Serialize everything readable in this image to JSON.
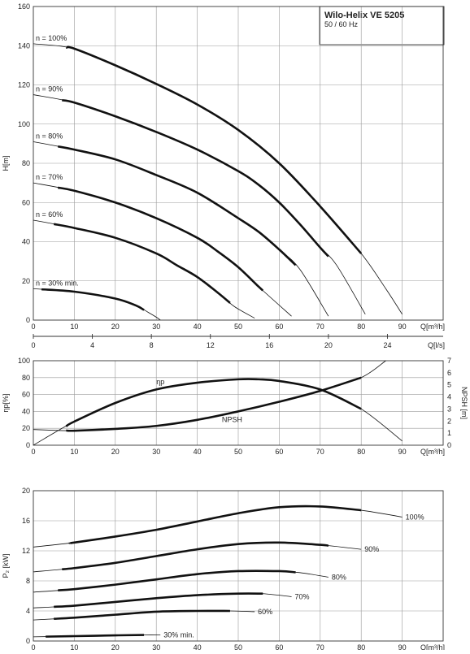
{
  "title": "Wilo-Helix VE 5205",
  "subtitle": "50 / 60 Hz",
  "chart_data": [
    {
      "type": "line",
      "xlabel": "Q[m³/h]",
      "ylabel": "H[m]",
      "xlim": [
        0,
        100
      ],
      "ylim": [
        0,
        160
      ],
      "xticks": [
        0,
        10,
        20,
        30,
        40,
        50,
        60,
        70,
        80,
        90
      ],
      "yticks": [
        0,
        20,
        40,
        60,
        80,
        100,
        120,
        140,
        160
      ],
      "secondary_xlabel": "Q[l/s]",
      "secondary_xticks": [
        0,
        4,
        8,
        12,
        16,
        20,
        24
      ],
      "grid": true,
      "series": [
        {
          "name": "n = 100%",
          "x": [
            0,
            10,
            20,
            30,
            40,
            50,
            60,
            70,
            80,
            86,
            90
          ],
          "y": [
            141,
            138.5,
            130,
            120.5,
            110,
            97,
            80,
            58,
            34,
            16,
            3
          ],
          "thick_range": [
            8,
            80
          ]
        },
        {
          "name": "n = 90%",
          "x": [
            0,
            10,
            20,
            30,
            40,
            50,
            55,
            60,
            65,
            70,
            74,
            81
          ],
          "y": [
            115,
            111,
            104,
            96,
            87,
            76,
            69,
            60,
            49,
            37,
            28,
            3
          ],
          "thick_range": [
            7,
            72
          ]
        },
        {
          "name": "n = 80%",
          "x": [
            0,
            10,
            20,
            30,
            40,
            50,
            55,
            60,
            65,
            72
          ],
          "y": [
            91,
            87,
            82,
            74,
            65,
            52,
            45,
            36,
            26,
            2
          ],
          "thick_range": [
            6,
            64
          ]
        },
        {
          "name": "n = 70%",
          "x": [
            0,
            10,
            20,
            30,
            40,
            45,
            50,
            55,
            63
          ],
          "y": [
            70,
            66,
            60,
            52,
            42,
            35,
            27,
            17,
            2
          ],
          "thick_range": [
            6,
            56
          ]
        },
        {
          "name": "n = 60%",
          "x": [
            0,
            10,
            20,
            30,
            35,
            40,
            45,
            49,
            54
          ],
          "y": [
            51,
            47,
            42,
            34,
            28,
            22,
            14,
            7,
            1
          ],
          "thick_range": [
            5,
            48
          ]
        },
        {
          "name": "n = 30% min.",
          "x": [
            0,
            10,
            20,
            25,
            28,
            30,
            31
          ],
          "y": [
            16,
            14.5,
            11,
            7.5,
            4,
            1.5,
            0
          ],
          "thick_range": [
            2,
            27
          ]
        }
      ]
    },
    {
      "type": "line",
      "xlabel": "Q[m³/h]",
      "ylabel": "ηp[%]",
      "secondary_ylabel": "NPSH [m]",
      "xlim": [
        0,
        100
      ],
      "ylim": [
        0,
        100
      ],
      "secondary_ylim": [
        0,
        7
      ],
      "xticks": [
        0,
        10,
        20,
        30,
        40,
        50,
        60,
        70,
        80,
        90
      ],
      "yticks": [
        0,
        20,
        40,
        60,
        80,
        100
      ],
      "secondary_yticks": [
        0,
        1,
        2,
        3,
        4,
        5,
        6,
        7
      ],
      "grid": true,
      "series": [
        {
          "name": "ηp",
          "axis": "left",
          "x": [
            0,
            10,
            20,
            30,
            40,
            50,
            55,
            60,
            70,
            80,
            90
          ],
          "y": [
            0,
            28,
            50,
            66,
            74,
            78,
            78,
            76,
            66,
            43,
            5
          ],
          "thick_range": [
            8,
            80
          ]
        },
        {
          "name": "NPSH",
          "axis": "right",
          "x": [
            0,
            10,
            20,
            30,
            40,
            50,
            60,
            70,
            80,
            86
          ],
          "y": [
            1.3,
            1.2,
            1.35,
            1.6,
            2.1,
            2.8,
            3.6,
            4.5,
            5.6,
            7
          ],
          "thick_range": [
            8,
            80
          ]
        }
      ]
    },
    {
      "type": "line",
      "xlabel": "Q[m³/h]",
      "ylabel": "P₂ [kW]",
      "xlim": [
        0,
        100
      ],
      "ylim": [
        0,
        20
      ],
      "xticks": [
        0,
        10,
        20,
        30,
        40,
        50,
        60,
        70,
        80,
        90
      ],
      "yticks": [
        0,
        4,
        8,
        12,
        16,
        20
      ],
      "grid": true,
      "series": [
        {
          "name": "100%",
          "x": [
            0,
            10,
            20,
            30,
            40,
            50,
            60,
            70,
            80,
            90
          ],
          "y": [
            12.5,
            13.1,
            13.9,
            14.8,
            15.9,
            17.0,
            17.8,
            17.9,
            17.4,
            16.5
          ],
          "thick_range": [
            9,
            80
          ]
        },
        {
          "name": "90%",
          "x": [
            0,
            10,
            20,
            30,
            40,
            50,
            60,
            70,
            80
          ],
          "y": [
            9.2,
            9.7,
            10.4,
            11.3,
            12.2,
            12.9,
            13.1,
            12.8,
            12.2
          ],
          "thick_range": [
            7,
            72
          ]
        },
        {
          "name": "80%",
          "x": [
            0,
            10,
            20,
            30,
            40,
            50,
            60,
            65,
            72
          ],
          "y": [
            6.5,
            6.9,
            7.5,
            8.2,
            8.9,
            9.3,
            9.3,
            9.1,
            8.5
          ],
          "thick_range": [
            6,
            64
          ]
        },
        {
          "name": "70%",
          "x": [
            0,
            10,
            20,
            30,
            40,
            50,
            56,
            63
          ],
          "y": [
            4.4,
            4.7,
            5.2,
            5.7,
            6.1,
            6.3,
            6.3,
            5.9
          ],
          "thick_range": [
            5,
            56
          ]
        },
        {
          "name": "60%",
          "x": [
            0,
            10,
            20,
            30,
            40,
            48,
            54
          ],
          "y": [
            2.8,
            3.1,
            3.5,
            3.9,
            4.0,
            4.0,
            3.9
          ],
          "thick_range": [
            5,
            48
          ]
        },
        {
          "name": "30% min.",
          "x": [
            0,
            10,
            20,
            27,
            31
          ],
          "y": [
            0.55,
            0.65,
            0.75,
            0.8,
            0.8
          ],
          "thick_range": [
            3,
            27
          ]
        }
      ]
    }
  ]
}
